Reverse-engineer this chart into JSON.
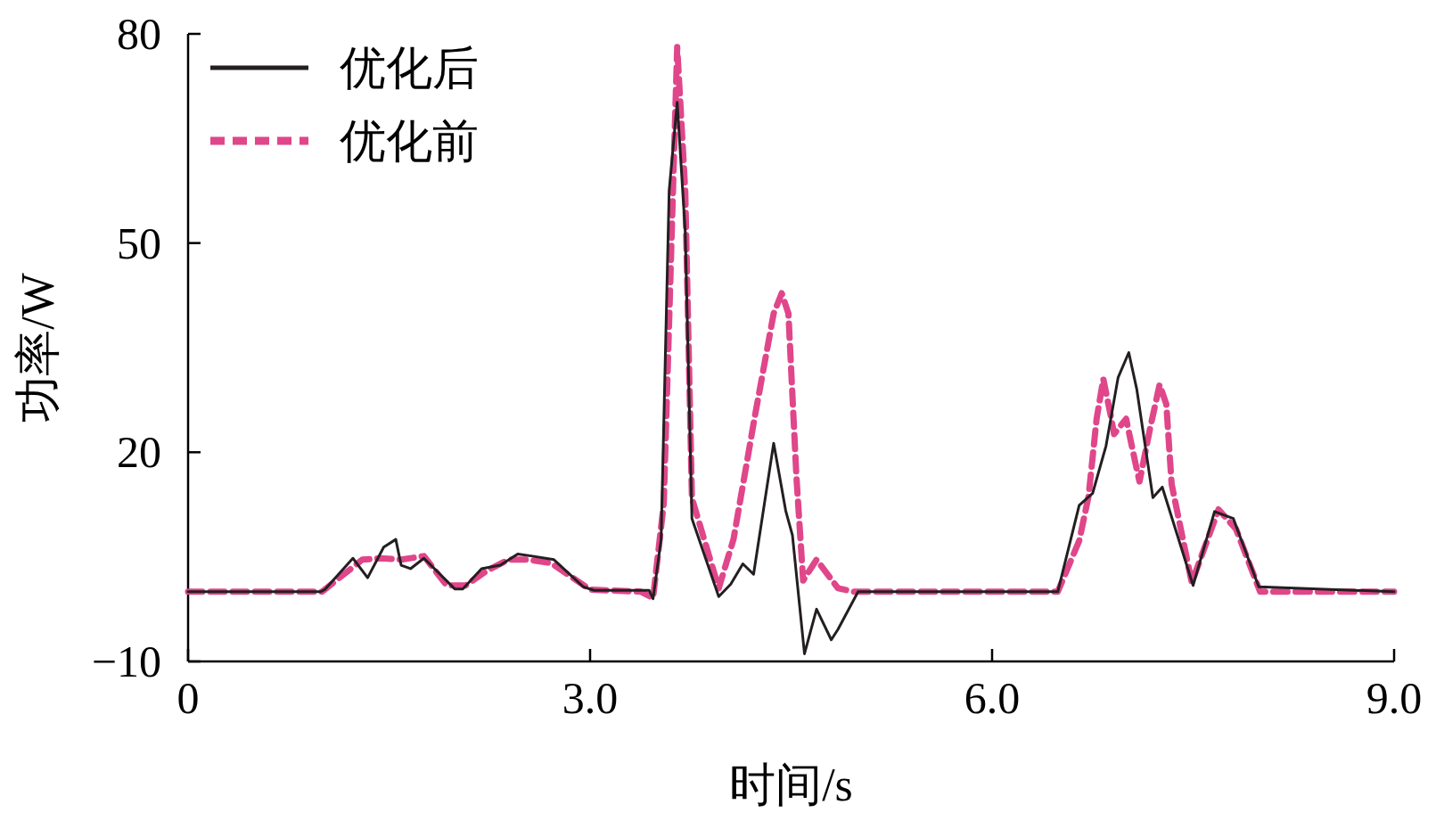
{
  "chart_data": {
    "type": "line",
    "xlabel": "时间/s",
    "ylabel": "功率/W",
    "xlim": [
      0,
      9
    ],
    "ylim": [
      -10,
      80
    ],
    "xticks": [
      0,
      {
        "value": 3,
        "label": "3.0"
      },
      {
        "value": 6,
        "label": "6.0"
      },
      {
        "value": 9,
        "label": "9.0"
      }
    ],
    "yticks": [
      {
        "value": -10,
        "label": "−10"
      },
      20,
      50,
      80
    ],
    "grid": false,
    "legend": "top left",
    "series": [
      {
        "name": "优化后",
        "color": "#231f20",
        "line_style": "solid",
        "x": [
          0,
          0.99,
          1.02,
          1.23,
          1.34,
          1.46,
          1.55,
          1.59,
          1.66,
          1.76,
          1.99,
          2.05,
          2.19,
          2.33,
          2.46,
          2.57,
          2.73,
          2.95,
          3.03,
          3.44,
          3.47,
          3.53,
          3.59,
          3.65,
          3.71,
          3.76,
          3.96,
          4.05,
          4.14,
          4.22,
          4.37,
          4.46,
          4.51,
          4.6,
          4.69,
          4.8,
          4.85,
          5.0,
          6.49,
          6.65,
          6.75,
          6.85,
          6.94,
          7.02,
          7.08,
          7.2,
          7.27,
          7.5,
          7.66,
          7.8,
          7.99,
          9
        ],
        "values": [
          0,
          0,
          0.3,
          4.8,
          2.0,
          6.4,
          7.5,
          3.8,
          3.3,
          4.8,
          0.4,
          0.4,
          3.3,
          3.8,
          5.4,
          5.1,
          4.6,
          0.7,
          0.2,
          0.2,
          -1.0,
          7.5,
          57.5,
          70.2,
          51.6,
          10.5,
          -0.7,
          1.1,
          4.0,
          2.5,
          21.3,
          11.6,
          8.1,
          -8.9,
          -2.5,
          -6.9,
          -5.4,
          0,
          0,
          12.4,
          14.1,
          20.9,
          30.7,
          34.3,
          29.0,
          13.5,
          15.0,
          0.9,
          11.5,
          10.5,
          0.7,
          0
        ]
      },
      {
        "name": "优化前",
        "color": "#e0468a",
        "line_style": "dashed",
        "x": [
          0,
          1.0,
          1.13,
          1.3,
          1.43,
          1.59,
          1.76,
          1.93,
          2.07,
          2.23,
          2.39,
          2.54,
          2.71,
          2.87,
          3.0,
          3.38,
          3.47,
          3.55,
          3.65,
          3.71,
          3.76,
          3.96,
          4.07,
          4.23,
          4.37,
          4.43,
          4.48,
          4.54,
          4.59,
          4.69,
          4.85,
          4.97,
          6.49,
          6.65,
          6.72,
          6.78,
          6.83,
          6.89,
          6.91,
          7.0,
          7.07,
          7.1,
          7.18,
          7.25,
          7.3,
          7.34,
          7.49,
          7.69,
          7.82,
          8.0,
          9
        ],
        "values": [
          0,
          0,
          2.0,
          4.6,
          4.8,
          4.6,
          5.1,
          0.9,
          0.9,
          3.0,
          4.6,
          4.6,
          4.1,
          2.0,
          0.3,
          0,
          -0.9,
          12.7,
          78.1,
          57.5,
          13.4,
          0.5,
          7.5,
          25.2,
          39.9,
          42.8,
          39.9,
          16.4,
          1.6,
          4.6,
          0.5,
          0,
          0,
          7.3,
          13.7,
          24.8,
          30.5,
          24.8,
          22.6,
          24.8,
          18.4,
          15.8,
          23.5,
          29.7,
          26.9,
          15.4,
          1.3,
          11.8,
          9.0,
          0,
          0
        ]
      }
    ]
  }
}
